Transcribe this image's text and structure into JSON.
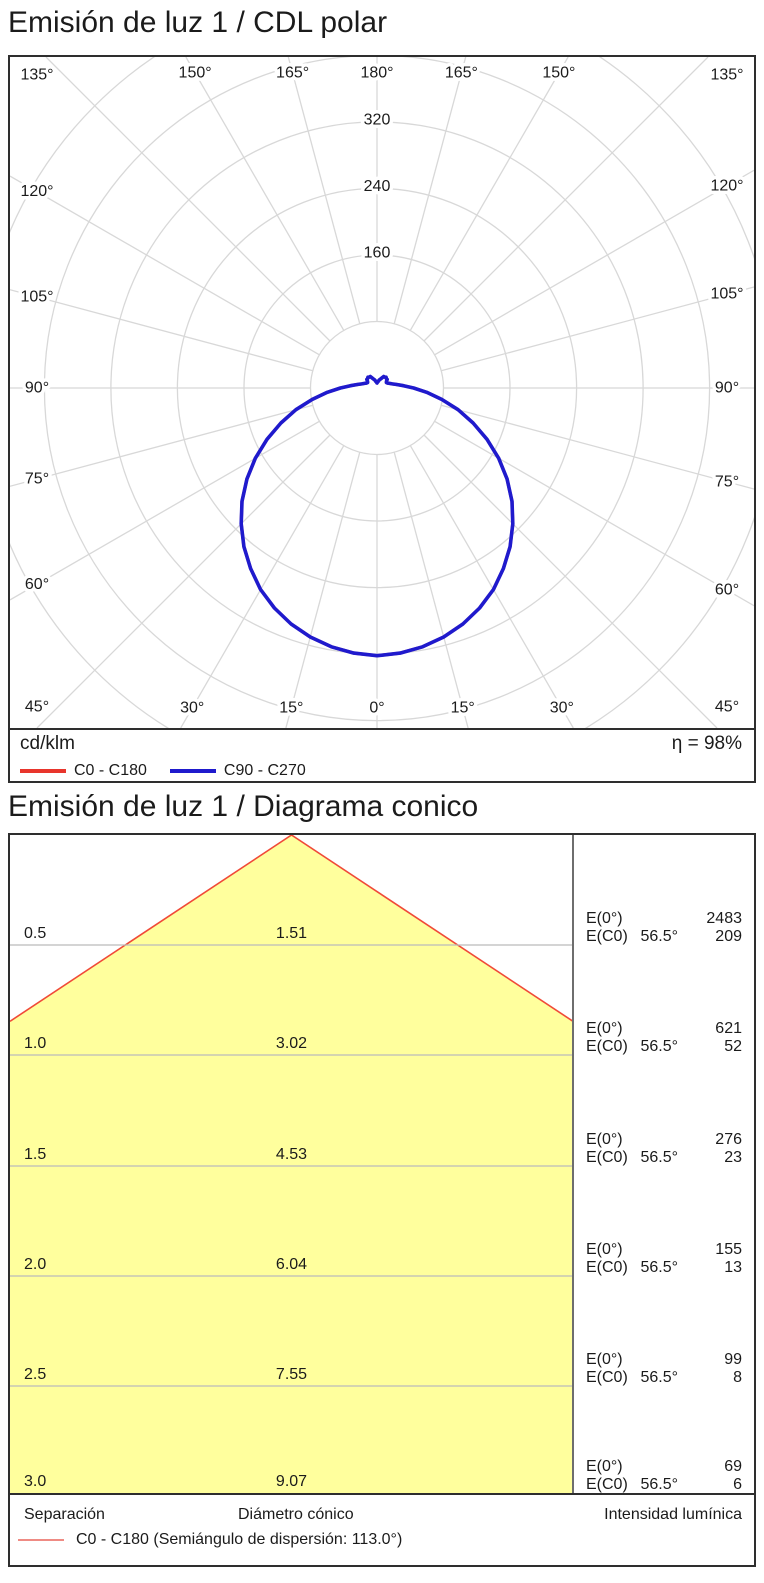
{
  "polar_section": {
    "title": "Emisión de luz 1 / CDL polar",
    "unit_label": "cd/klm",
    "efficiency_label": "η = 98%",
    "angle_labels": [
      "0°",
      "15°",
      "30°",
      "45°",
      "60°",
      "75°",
      "90°",
      "105°",
      "120°",
      "135°",
      "150°",
      "165°",
      "180°"
    ],
    "legend": [
      {
        "label": "C0 - C180",
        "color": "#e8352c"
      },
      {
        "label": "C90 - C270",
        "color": "#1f1acd"
      }
    ]
  },
  "cone_section": {
    "title": "Emisión de luz 1 / Diagrama conico",
    "columns": {
      "separation": "Separación",
      "diameter": "Diámetro cónico",
      "intensity": "Intensidad lumínica"
    },
    "legend_label": "C0 - C180 (Semiángulo de dispersión: 113.0°)",
    "legend_color": "#ef8b84",
    "rows": [
      {
        "separation": "0.5",
        "diameter": "1.51",
        "e0_label": "E(0°)",
        "e0": "2483",
        "ec0_label": "E(C0)",
        "angle": "56.5°",
        "ec0": "209"
      },
      {
        "separation": "1.0",
        "diameter": "3.02",
        "e0_label": "E(0°)",
        "e0": "621",
        "ec0_label": "E(C0)",
        "angle": "56.5°",
        "ec0": "52"
      },
      {
        "separation": "1.5",
        "diameter": "4.53",
        "e0_label": "E(0°)",
        "e0": "276",
        "ec0_label": "E(C0)",
        "angle": "56.5°",
        "ec0": "23"
      },
      {
        "separation": "2.0",
        "diameter": "6.04",
        "e0_label": "E(0°)",
        "e0": "155",
        "ec0_label": "E(C0)",
        "angle": "56.5°",
        "ec0": "13"
      },
      {
        "separation": "2.5",
        "diameter": "7.55",
        "e0_label": "E(0°)",
        "e0": "99",
        "ec0_label": "E(C0)",
        "angle": "56.5°",
        "ec0": "8"
      },
      {
        "separation": "3.0",
        "diameter": "9.07",
        "e0_label": "E(0°)",
        "e0": "69",
        "ec0_label": "E(C0)",
        "angle": "56.5°",
        "ec0": "6"
      }
    ]
  },
  "chart_data": [
    {
      "type": "line",
      "subtype": "polar-photometric",
      "title": "Emisión de luz 1 / CDL polar",
      "unit": "cd/klm",
      "efficiency_percent": 98,
      "gamma_deg": [
        0,
        5,
        10,
        15,
        20,
        25,
        30,
        35,
        40,
        45,
        50,
        55,
        60,
        65,
        70,
        75,
        80,
        85,
        90,
        95,
        100,
        105,
        110,
        115,
        120,
        125,
        130,
        135,
        140,
        145,
        150,
        155,
        160,
        165,
        170,
        175,
        180
      ],
      "series": [
        {
          "name": "C0 - C180",
          "color": "#e8352c",
          "values_cd_per_klm": [
            322,
            320,
            316,
            310,
            302,
            292,
            280,
            265,
            249,
            231,
            212,
            191,
            169,
            146,
            123,
            101,
            79,
            60,
            44,
            32,
            24,
            19,
            16,
            14,
            13,
            14,
            16,
            16,
            17,
            16,
            16,
            13,
            11,
            10,
            8,
            7,
            6
          ]
        },
        {
          "name": "C90 - C270",
          "color": "#1f1acd",
          "values_cd_per_klm": [
            322,
            320,
            316,
            310,
            302,
            292,
            280,
            265,
            249,
            231,
            212,
            191,
            169,
            146,
            123,
            101,
            79,
            60,
            44,
            32,
            24,
            19,
            16,
            14,
            13,
            14,
            16,
            16,
            17,
            16,
            16,
            13,
            11,
            10,
            8,
            7,
            6
          ]
        }
      ],
      "radial_axis": {
        "circles": [
          80,
          160,
          240,
          320,
          400,
          480
        ],
        "labeled": [
          160,
          240,
          320
        ]
      },
      "angle_axis": {
        "step_deg": 15,
        "min_deg": 0,
        "max_deg": 180,
        "symmetric": true
      },
      "legend_position": "bottom"
    },
    {
      "type": "table",
      "subtype": "cone-diagram",
      "title": "Emisión de luz 1 / Diagrama conico",
      "beam_half_angle_deg": 56.5,
      "beam_angle_label": "113.0°",
      "fill_color": "#ffff9d",
      "edge_color": "#f04a38",
      "rows": [
        {
          "separation_m": 0.5,
          "cone_diameter_m": 1.51,
          "E0_lx": 2483,
          "EC0_lx": 209
        },
        {
          "separation_m": 1.0,
          "cone_diameter_m": 3.02,
          "E0_lx": 621,
          "EC0_lx": 52
        },
        {
          "separation_m": 1.5,
          "cone_diameter_m": 4.53,
          "E0_lx": 276,
          "EC0_lx": 23
        },
        {
          "separation_m": 2.0,
          "cone_diameter_m": 6.04,
          "E0_lx": 155,
          "EC0_lx": 13
        },
        {
          "separation_m": 2.5,
          "cone_diameter_m": 7.55,
          "E0_lx": 99,
          "EC0_lx": 8
        },
        {
          "separation_m": 3.0,
          "cone_diameter_m": 9.07,
          "E0_lx": 69,
          "EC0_lx": 6
        }
      ]
    }
  ]
}
